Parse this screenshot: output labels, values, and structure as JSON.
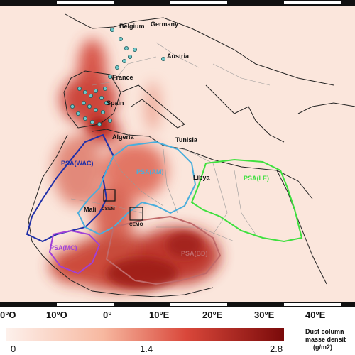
{
  "countries": {
    "belgium": "Belgium",
    "germany": "Germany",
    "austria": "Austria",
    "france": "France",
    "spain": "Spain",
    "algeria": "Algeria",
    "tunisia": "Tunisia",
    "libya": "Libya",
    "mali": "Mali"
  },
  "sites": {
    "csem": "CSEM",
    "cemo": "CEMO"
  },
  "regions": [
    {
      "id": "wac",
      "label": "PSA(WAC)",
      "color": "#1f2fa8"
    },
    {
      "id": "am",
      "label": "PSA(AM)",
      "color": "#4aaedc"
    },
    {
      "id": "le",
      "label": "PSA(LE)",
      "color": "#3ee03e"
    },
    {
      "id": "mc",
      "label": "PSA(MC)",
      "color": "#a040d8"
    },
    {
      "id": "bd",
      "label": "PSA(BD)",
      "color": "#c06a6a"
    }
  ],
  "axis": {
    "lon_ticks": [
      "0°O",
      "10°O",
      "0°",
      "10°E",
      "20°E",
      "30°E",
      "40°E"
    ]
  },
  "colorbar": {
    "title_line1": "Dust column",
    "title_line2": "masse densit",
    "unit": "(g/m2)",
    "min_label": "0",
    "mid_label": "1.4",
    "max_label": "2.8",
    "color_low": "#fdf1ec",
    "color_high": "#7a0a0a"
  }
}
